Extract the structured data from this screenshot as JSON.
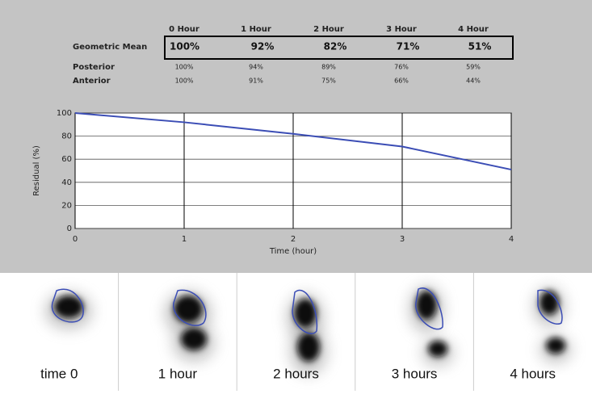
{
  "table": {
    "columns": [
      "0 Hour",
      "1 Hour",
      "2 Hour",
      "3 Hour",
      "4 Hour"
    ],
    "rows": [
      {
        "label": "Geometric Mean",
        "values": [
          "100%",
          "92%",
          "82%",
          "71%",
          "51%"
        ]
      },
      {
        "label": "Posterior",
        "values": [
          "100%",
          "94%",
          "89%",
          "76%",
          "59%"
        ]
      },
      {
        "label": "Anterior",
        "values": [
          "100%",
          "91%",
          "75%",
          "66%",
          "44%"
        ]
      }
    ]
  },
  "chart_data": {
    "type": "line",
    "x_label": "Time (hour)",
    "y_label": "Residual (%)",
    "x": [
      0,
      1,
      2,
      3,
      4
    ],
    "series": [
      {
        "name": "Geometric Mean",
        "color": "#3b4db5",
        "values": [
          100,
          92,
          82,
          71,
          51
        ]
      }
    ],
    "xlim": [
      0,
      4
    ],
    "xticks": [
      0,
      1,
      2,
      3,
      4
    ],
    "ylim": [
      0,
      100
    ],
    "yticks": [
      0,
      20,
      40,
      60,
      80,
      100
    ],
    "grid": true
  },
  "panels": [
    {
      "label": "time 0"
    },
    {
      "label": "1 hour"
    },
    {
      "label": "2 hours"
    },
    {
      "label": "3 hours"
    },
    {
      "label": "4 hours"
    }
  ]
}
